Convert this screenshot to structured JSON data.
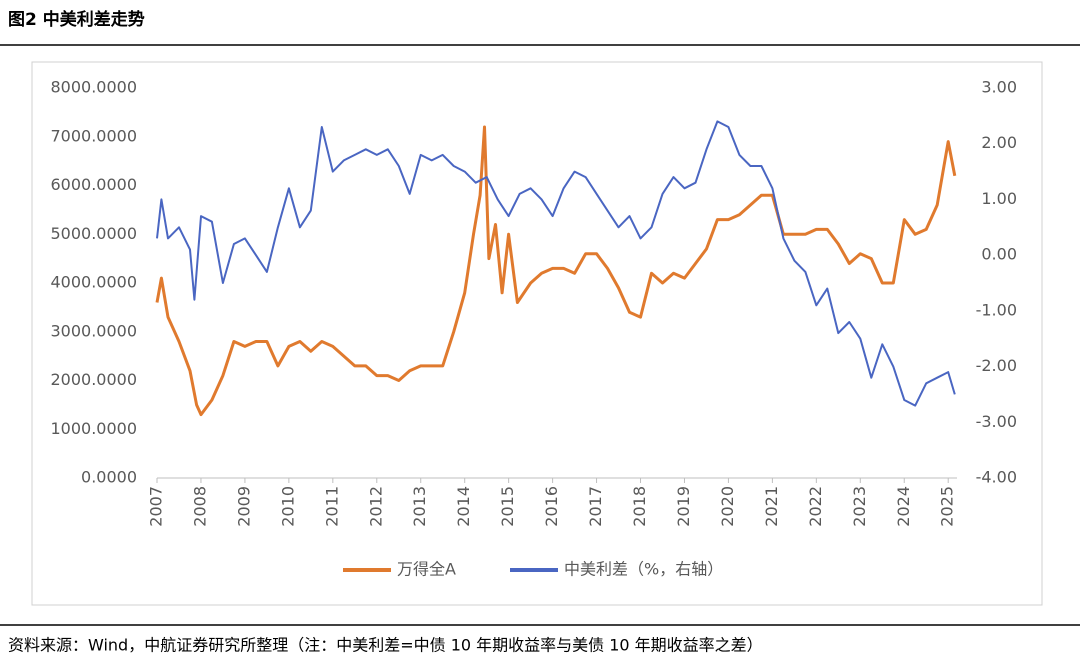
{
  "chart_data": {
    "type": "line",
    "title": "图2  中美利差走势",
    "source": "资料来源：Wind，中航证券研究所整理（注：中美利差=中债 10 年期收益率与美债 10 年期收益率之差）",
    "xlim": [
      2007,
      2025.2
    ],
    "xticks": [
      2007,
      2008,
      2009,
      2010,
      2011,
      2012,
      2013,
      2014,
      2015,
      2016,
      2017,
      2018,
      2019,
      2020,
      2021,
      2022,
      2023,
      2024,
      2025
    ],
    "ylim": [
      0,
      8000
    ],
    "yticks": [
      {
        "value": 0,
        "label": "0.0000"
      },
      {
        "value": 1000,
        "label": "1000.0000"
      },
      {
        "value": 2000,
        "label": "2000.0000"
      },
      {
        "value": 3000,
        "label": "3000.0000"
      },
      {
        "value": 4000,
        "label": "4000.0000"
      },
      {
        "value": 5000,
        "label": "5000.0000"
      },
      {
        "value": 6000,
        "label": "6000.0000"
      },
      {
        "value": 7000,
        "label": "7000.0000"
      },
      {
        "value": 8000,
        "label": "8000.0000"
      }
    ],
    "y2lim": [
      -4,
      3
    ],
    "y2ticks": [
      {
        "value": -4,
        "label": "-4.00"
      },
      {
        "value": -3,
        "label": "-3.00"
      },
      {
        "value": -2,
        "label": "-2.00"
      },
      {
        "value": -1,
        "label": "-1.00"
      },
      {
        "value": 0,
        "label": "0.00"
      },
      {
        "value": 1,
        "label": "1.00"
      },
      {
        "value": 2,
        "label": "2.00"
      },
      {
        "value": 3,
        "label": "3.00"
      }
    ],
    "legend": "bottom",
    "series": [
      {
        "name": "万得全A",
        "color": "#e07a2e",
        "axis": "y",
        "x": [
          2007.0,
          2007.1,
          2007.25,
          2007.5,
          2007.75,
          2007.9,
          2008.0,
          2008.25,
          2008.5,
          2008.75,
          2009.0,
          2009.25,
          2009.5,
          2009.75,
          2010.0,
          2010.25,
          2010.5,
          2010.75,
          2011.0,
          2011.25,
          2011.5,
          2011.75,
          2012.0,
          2012.25,
          2012.5,
          2012.75,
          2013.0,
          2013.25,
          2013.5,
          2013.75,
          2014.0,
          2014.2,
          2014.35,
          2014.45,
          2014.55,
          2014.7,
          2014.85,
          2015.0,
          2015.2,
          2015.5,
          2015.75,
          2016.0,
          2016.25,
          2016.5,
          2016.75,
          2017.0,
          2017.25,
          2017.5,
          2017.75,
          2018.0,
          2018.25,
          2018.5,
          2018.75,
          2019.0,
          2019.25,
          2019.5,
          2019.75,
          2020.0,
          2020.25,
          2020.5,
          2020.75,
          2021.0,
          2021.25,
          2021.5,
          2021.75,
          2022.0,
          2022.25,
          2022.5,
          2022.75,
          2023.0,
          2023.25,
          2023.5,
          2023.75,
          2024.0,
          2024.25,
          2024.5,
          2024.75,
          2025.0,
          2025.15
        ],
        "values": [
          3600,
          4100,
          3300,
          2800,
          2200,
          1500,
          1300,
          1600,
          2100,
          2800,
          2700,
          2800,
          2800,
          2300,
          2700,
          2800,
          2600,
          2800,
          2700,
          2500,
          2300,
          2300,
          2100,
          2100,
          2000,
          2200,
          2300,
          2300,
          2300,
          3000,
          3800,
          5000,
          5800,
          7200,
          4500,
          5200,
          3800,
          5000,
          3600,
          4000,
          4200,
          4300,
          4300,
          4200,
          4600,
          4600,
          4300,
          3900,
          3400,
          3300,
          4200,
          4000,
          4200,
          4100,
          4400,
          4700,
          5300,
          5300,
          5400,
          5600,
          5800,
          5800,
          5000,
          5000,
          5000,
          5100,
          5100,
          4800,
          4400,
          4600,
          4500,
          4000,
          4000,
          5300,
          5000,
          5100,
          5600,
          6900,
          6200
        ]
      },
      {
        "name": "中美利差（%，右轴）",
        "color": "#4a66c2",
        "axis": "y2",
        "x": [
          2007.0,
          2007.1,
          2007.25,
          2007.5,
          2007.75,
          2007.85,
          2008.0,
          2008.25,
          2008.5,
          2008.75,
          2009.0,
          2009.25,
          2009.5,
          2009.75,
          2010.0,
          2010.25,
          2010.5,
          2010.75,
          2011.0,
          2011.25,
          2011.5,
          2011.75,
          2012.0,
          2012.25,
          2012.5,
          2012.75,
          2013.0,
          2013.25,
          2013.5,
          2013.75,
          2014.0,
          2014.25,
          2014.5,
          2014.75,
          2015.0,
          2015.25,
          2015.5,
          2015.75,
          2016.0,
          2016.25,
          2016.5,
          2016.75,
          2017.0,
          2017.25,
          2017.5,
          2017.75,
          2018.0,
          2018.25,
          2018.5,
          2018.75,
          2019.0,
          2019.25,
          2019.5,
          2019.75,
          2020.0,
          2020.25,
          2020.5,
          2020.75,
          2021.0,
          2021.25,
          2021.5,
          2021.75,
          2022.0,
          2022.25,
          2022.5,
          2022.75,
          2023.0,
          2023.25,
          2023.5,
          2023.75,
          2024.0,
          2024.25,
          2024.5,
          2024.75,
          2025.0,
          2025.15
        ],
        "values": [
          0.3,
          1.0,
          0.3,
          0.5,
          0.1,
          -0.8,
          0.7,
          0.6,
          -0.5,
          0.2,
          0.3,
          0.0,
          -0.3,
          0.5,
          1.2,
          0.5,
          0.8,
          2.3,
          1.5,
          1.7,
          1.8,
          1.9,
          1.8,
          1.9,
          1.6,
          1.1,
          1.8,
          1.7,
          1.8,
          1.6,
          1.5,
          1.3,
          1.4,
          1.0,
          0.7,
          1.1,
          1.2,
          1.0,
          0.7,
          1.2,
          1.5,
          1.4,
          1.1,
          0.8,
          0.5,
          0.7,
          0.3,
          0.5,
          1.1,
          1.4,
          1.2,
          1.3,
          1.9,
          2.4,
          2.3,
          1.8,
          1.6,
          1.6,
          1.2,
          0.3,
          -0.1,
          -0.3,
          -0.9,
          -0.6,
          -1.4,
          -1.2,
          -1.5,
          -2.2,
          -1.6,
          -2.0,
          -2.6,
          -2.7,
          -2.3,
          -2.2,
          -2.1,
          -2.5
        ]
      }
    ]
  }
}
